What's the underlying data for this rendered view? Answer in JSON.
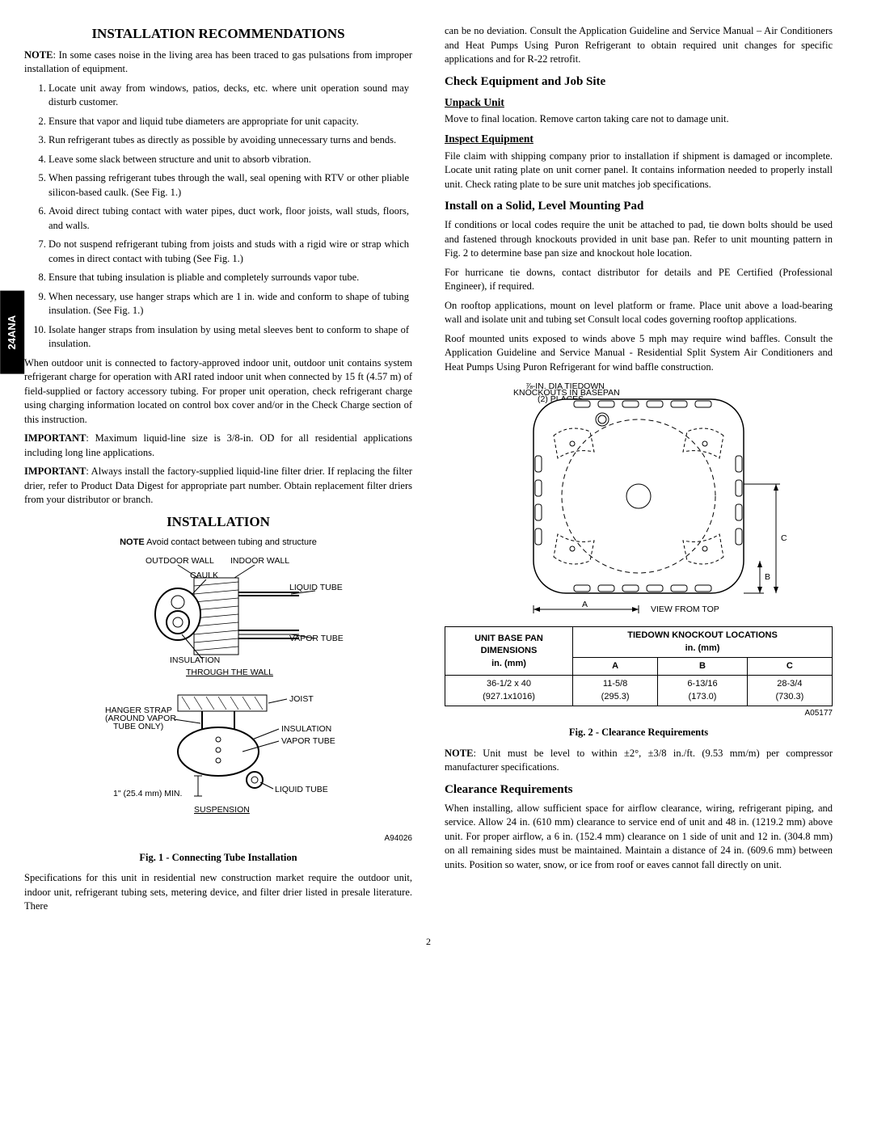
{
  "sideTab": "24ANA",
  "pageNumber": "2",
  "left": {
    "h1_recs": "INSTALLATION RECOMMENDATIONS",
    "note": "NOTE:  In some cases noise in the living area has been traced to gas pulsations from improper installation of equipment.",
    "list": [
      "Locate unit away from windows, patios, decks, etc. where unit operation sound may disturb customer.",
      "Ensure that vapor and liquid tube diameters are appropriate for unit capacity.",
      "Run refrigerant tubes as directly as possible by avoiding unnecessary turns and bends.",
      "Leave some slack between structure and unit to absorb vibration.",
      "When passing refrigerant tubes through the wall, seal opening with RTV or other pliable silicon-based caulk. (See Fig. 1.)",
      "Avoid direct tubing contact with water pipes, duct work, floor joists, wall studs, floors, and walls.",
      "Do not suspend refrigerant tubing from joists and studs with a rigid wire or strap which comes in direct contact with tubing (See Fig. 1.)",
      "Ensure that tubing insulation is pliable and completely surrounds vapor tube.",
      "When necessary, use hanger straps which are 1 in. wide and conform to shape of tubing insulation. (See Fig. 1.)",
      "Isolate hanger straps from insulation by using metal sleeves bent to conform to shape of insulation."
    ],
    "p_after_list": "When outdoor unit is connected to factory-approved indoor unit, outdoor unit contains system refrigerant charge for operation with ARI rated indoor unit when connected by 15 ft (4.57 m) of field-supplied or factory accessory tubing. For proper unit operation, check refrigerant charge using charging information located on control box cover and/or in the Check Charge section of this instruction.",
    "imp1": "IMPORTANT: Maximum liquid-line size is 3/8-in. OD for all residential applications including long line applications.",
    "imp2": "IMPORTANT:  Always install the factory-supplied liquid-line filter drier. If replacing the filter drier, refer to Product Data Digest for appropriate part number. Obtain replacement filter driers from your distributor or branch.",
    "h1_install": "INSTALLATION",
    "fig1_note": "NOTE Avoid contact between tubing and structure",
    "fig1_labels": {
      "outdoor_wall": "OUTDOOR WALL",
      "indoor_wall": "INDOOR WALL",
      "caulk": "CAULK",
      "liquid_tube": "LIQUID TUBE",
      "vapor_tube": "VAPOR TUBE",
      "insulation": "INSULATION",
      "through_wall": "THROUGH THE WALL",
      "joist": "JOIST",
      "hanger_strap": "HANGER STRAP\n(AROUND VAPOR\nTUBE ONLY)",
      "min": "1\" (25.4 mm) MIN.",
      "suspension": "SUSPENSION"
    },
    "fig1_num": "A94026",
    "fig1_caption": "Fig. 1 - Connecting Tube Installation",
    "p_spec": "Specifications for this unit in residential new construction market require the outdoor unit, indoor unit, refrigerant tubing sets, metering device, and filter drier listed in presale literature. There"
  },
  "right": {
    "p_cont": "can be no deviation. Consult the Application Guideline and Service Manual – Air Conditioners and Heat Pumps Using Puron Refrigerant to obtain required unit changes for specific applications and for R-22 retrofit.",
    "h2_check": "Check Equipment and Job Site",
    "h3_unpack": "Unpack Unit",
    "p_unpack": "Move to final location. Remove carton taking care not to damage unit.",
    "h3_inspect": "Inspect Equipment",
    "p_inspect": "File claim with shipping company prior to installation if shipment is damaged or incomplete. Locate unit rating plate on unit corner panel. It contains information needed to properly install unit. Check rating plate to be sure unit matches job specifications.",
    "h2_install_pad": "Install on a Solid, Level Mounting Pad",
    "p_pad1": "If conditions or local codes require the unit be attached to pad, tie down bolts should be used and fastened through knockouts provided in unit base pan. Refer to unit mounting pattern in Fig. 2 to determine base pan size and knockout hole location.",
    "p_pad2": "For hurricane tie downs, contact distributor for details and PE Certified (Professional Engineer), if required.",
    "p_pad3": "On rooftop applications, mount on level platform or frame.  Place unit above a load-bearing wall and isolate unit and tubing set Consult local codes governing rooftop applications.",
    "p_pad4": "Roof mounted units exposed to winds above 5 mph may require wind baffles. Consult the Application Guideline and Service Manual - Residential Split System Air Conditioners and Heat Pumps Using Puron Refrigerant for wind baffle construction.",
    "fig2_labels": {
      "knockout_note": "⅞-IN. DIA TIEDOWN\nKNOCKOUTS IN BASEPAN\n(2) PLACES",
      "view": "VIEW  FROM  TOP",
      "dimA": "A",
      "dimB": "B",
      "dimC": "C"
    },
    "table": {
      "h_basepan": "UNIT BASE PAN DIMENSIONS in. (mm)",
      "h_tiedown": "TIEDOWN KNOCKOUT LOCATIONS in. (mm)",
      "colA": "A",
      "colB": "B",
      "colC": "C",
      "r1c1": "36-1/2 x 40\n(927.1x1016)",
      "r1c2": "11-5/8\n(295.3)",
      "r1c3": "6-13/16\n(173.0)",
      "r1c4": "28-3/4\n(730.3)"
    },
    "fig2_num": "A05177",
    "fig2_caption": "Fig. 2 - Clearance Requirements",
    "note_level": "NOTE:  Unit must be level to within ±2°,     ±3/8 in./ft. (9.53 mm/m) per compressor manufacturer specifications.",
    "h2_clearance": "Clearance Requirements",
    "p_clearance": "When installing, allow sufficient space for airflow clearance, wiring, refrigerant piping, and service. Allow 24 in. (610 mm) clearance to service end of unit and 48 in. (1219.2 mm) above unit. For proper airflow, a 6 in. (152.4 mm) clearance on 1 side of unit and 12 in. (304.8 mm) on all remaining sides must be maintained. Maintain a distance of 24 in. (609.6 mm) between units. Position so water, snow, or ice from roof or eaves cannot fall directly on unit."
  }
}
